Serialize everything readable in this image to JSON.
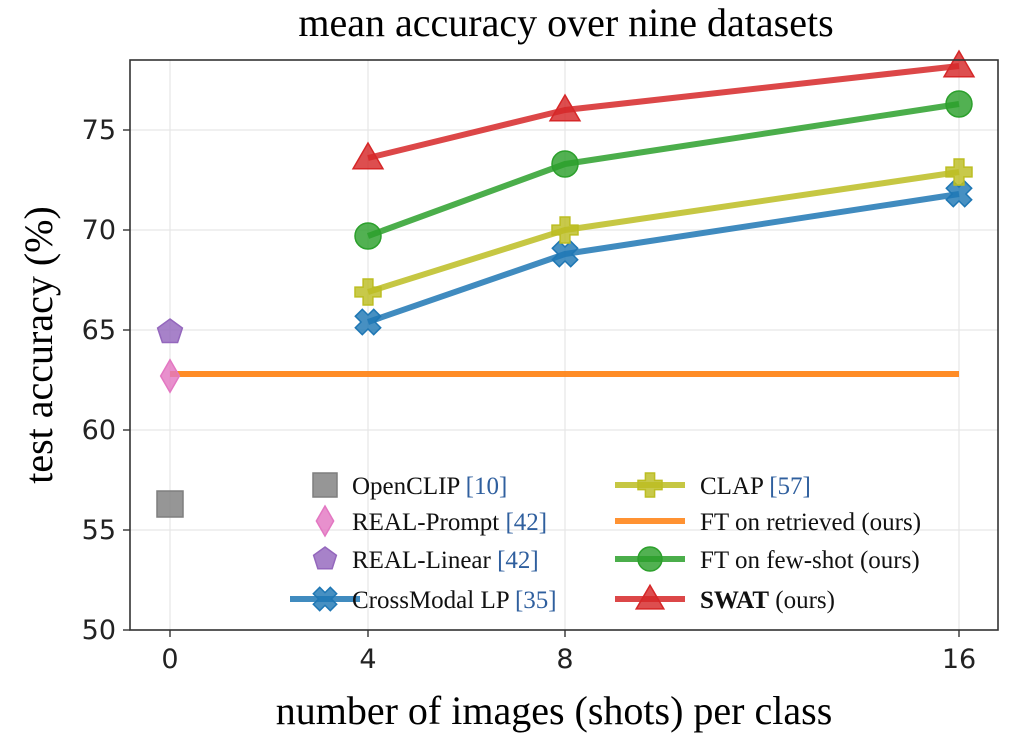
{
  "chart_data": {
    "type": "line",
    "title": "mean accuracy over nine datasets",
    "xlabel": "number of images (shots) per class",
    "ylabel": "test accuracy (%)",
    "x": [
      0,
      4,
      8,
      16
    ],
    "xticks": [
      "0",
      "4",
      "8",
      "16"
    ],
    "ylim": [
      50,
      78.5
    ],
    "yticks": [
      "50",
      "55",
      "60",
      "65",
      "70",
      "75"
    ],
    "grid": true,
    "legend_position": "bottom-right",
    "series": [
      {
        "name": "OpenCLIP",
        "ref": "[10]",
        "bold": false,
        "color": "#7f7f7f",
        "marker": "square",
        "line": false,
        "x": [
          0
        ],
        "y": [
          56.3
        ]
      },
      {
        "name": "REAL-Prompt",
        "ref": "[42]",
        "bold": false,
        "color": "#e377c2",
        "marker": "diamond",
        "line": false,
        "x": [
          0
        ],
        "y": [
          62.7
        ]
      },
      {
        "name": "REAL-Linear",
        "ref": "[42]",
        "bold": false,
        "color": "#9467bd",
        "marker": "pentagon",
        "line": false,
        "x": [
          0
        ],
        "y": [
          64.9
        ]
      },
      {
        "name": "CrossModal LP",
        "ref": "[35]",
        "bold": false,
        "color": "#1f77b4",
        "marker": "x",
        "line": true,
        "x": [
          4,
          8,
          16
        ],
        "y": [
          65.4,
          68.8,
          71.8
        ]
      },
      {
        "name": "CLAP",
        "ref": "[57]",
        "bold": false,
        "color": "#bcbd22",
        "marker": "plus",
        "line": true,
        "x": [
          4,
          8,
          16
        ],
        "y": [
          66.9,
          70.0,
          72.9
        ]
      },
      {
        "name": "FT on retrieved",
        "ref": "(ours)",
        "bold": false,
        "color": "#ff7f0e",
        "marker": "none",
        "line": true,
        "x": [
          0,
          16
        ],
        "y": [
          62.8,
          62.8
        ]
      },
      {
        "name": "FT on few-shot",
        "ref": "(ours)",
        "bold": false,
        "color": "#2ca02c",
        "marker": "circle",
        "line": true,
        "x": [
          4,
          8,
          16
        ],
        "y": [
          69.7,
          73.3,
          76.3
        ]
      },
      {
        "name": "SWAT",
        "ref": "(ours)",
        "bold": true,
        "color": "#d62728",
        "marker": "triangle",
        "line": true,
        "x": [
          4,
          8,
          16
        ],
        "y": [
          73.6,
          76.0,
          78.2
        ]
      }
    ]
  }
}
